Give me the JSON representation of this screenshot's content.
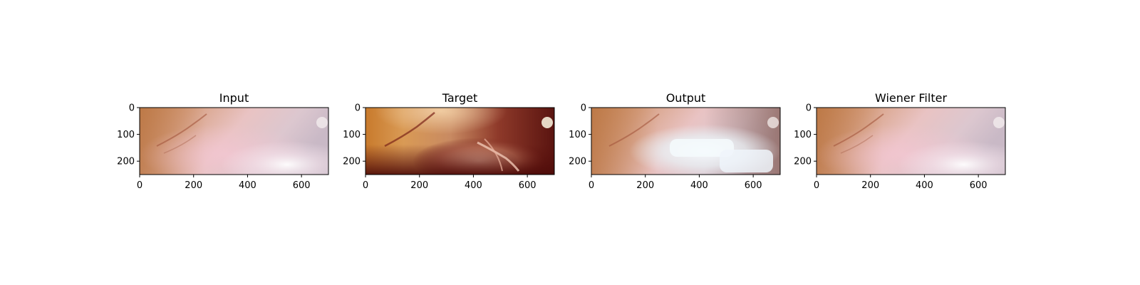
{
  "figure": {
    "panels": [
      {
        "title": "Input",
        "variant": "hazy"
      },
      {
        "title": "Target",
        "variant": "clear"
      },
      {
        "title": "Output",
        "variant": "restored"
      },
      {
        "title": "Wiener Filter",
        "variant": "hazy"
      }
    ],
    "x_ticks": [
      "0",
      "200",
      "400",
      "600"
    ],
    "y_ticks": [
      "0",
      "100",
      "200"
    ],
    "image_size": {
      "width": 700,
      "height": 250
    }
  }
}
